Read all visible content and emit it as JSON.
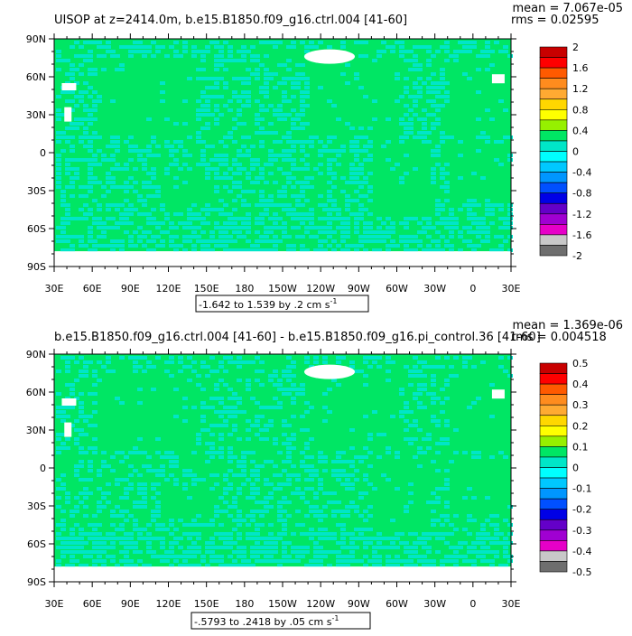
{
  "chart_data": [
    {
      "type": "heatmap",
      "title": "UISOP at z=2414.0m, b.e15.B1850.f09_g16.ctrl.004 [41-60]",
      "stat_mean": "mean = 7.067e-05",
      "stat_rms": "rms = 0.02595",
      "range_text": "-1.642 to 1.539 by .2 cm s",
      "range_unit_exp": "-1",
      "xticks": [
        "30E",
        "60E",
        "90E",
        "120E",
        "150E",
        "180",
        "150W",
        "120W",
        "90W",
        "60W",
        "30W",
        "0",
        "30E"
      ],
      "yticks": [
        "90N",
        "60N",
        "30N",
        "0",
        "30S",
        "60S",
        "90S"
      ],
      "xlim": [
        30,
        390
      ],
      "ylim": [
        -90,
        90
      ],
      "colorbar_labels": [
        "2",
        "1.6",
        "1.2",
        "0.8",
        "0.4",
        "0",
        "-0.4",
        "-0.8",
        "-1.2",
        "-1.6",
        "-2"
      ],
      "colorbar_colors": [
        "#c80000",
        "#ff0000",
        "#ff5a00",
        "#ff8c1e",
        "#ffaa32",
        "#ffd700",
        "#ffff00",
        "#96f000",
        "#00e664",
        "#00e6c8",
        "#00ffff",
        "#00c8ff",
        "#0096ff",
        "#0050ff",
        "#0000e6",
        "#6400c8",
        "#a000d2",
        "#e600c8",
        "#c8c8c8",
        "#6e6e6e"
      ],
      "background_value_color": "#00e664",
      "anomaly_color": "#00e6c8"
    },
    {
      "type": "heatmap",
      "title": "b.e15.B1850.f09_g16.ctrl.004 [41-60] - b.e15.B1850.f09_g16.pi_control.36 [41-60]",
      "stat_mean": "mean = 1.369e-06",
      "stat_rms": "rms = 0.004518",
      "range_text": "-.5793 to .2418 by .05 cm s",
      "range_unit_exp": "-1",
      "xticks": [
        "30E",
        "60E",
        "90E",
        "120E",
        "150E",
        "180",
        "150W",
        "120W",
        "90W",
        "60W",
        "30W",
        "0",
        "30E"
      ],
      "yticks": [
        "90N",
        "60N",
        "30N",
        "0",
        "30S",
        "60S",
        "90S"
      ],
      "xlim": [
        30,
        390
      ],
      "ylim": [
        -90,
        90
      ],
      "colorbar_labels": [
        "0.5",
        "0.4",
        "0.3",
        "0.2",
        "0.1",
        "0",
        "-0.1",
        "-0.2",
        "-0.3",
        "-0.4",
        "-0.5"
      ],
      "colorbar_colors": [
        "#c80000",
        "#ff0000",
        "#ff5a00",
        "#ff8c1e",
        "#ffaa32",
        "#ffd700",
        "#ffff00",
        "#96f000",
        "#00e664",
        "#00e6c8",
        "#00ffff",
        "#00c8ff",
        "#0096ff",
        "#0050ff",
        "#0000e6",
        "#6400c8",
        "#a000d2",
        "#e600c8",
        "#c8c8c8",
        "#6e6e6e"
      ],
      "background_value_color": "#00e664",
      "anomaly_color": "#00e6c8"
    }
  ]
}
